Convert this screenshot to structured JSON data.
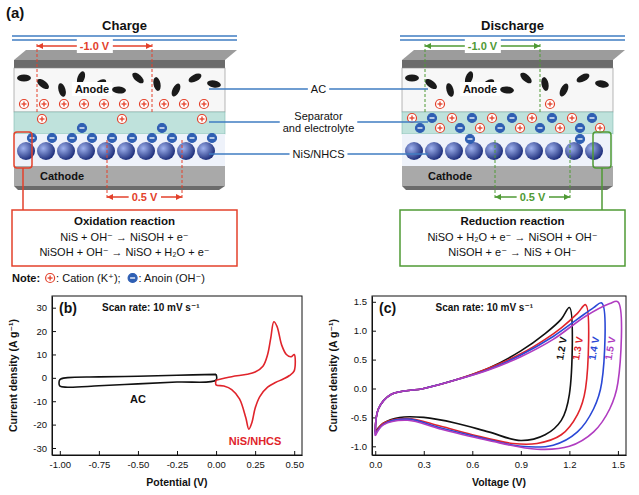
{
  "diagram": {
    "label": "(a)",
    "panels": [
      {
        "title": "Charge",
        "anode": "Anode",
        "cathode": "Cathode",
        "anode_voltage": "-1.0 V",
        "cathode_voltage": "0.5 V",
        "reaction": {
          "title": "Oxidation reaction",
          "equations": [
            "NiS + OH⁻ → NiSOH + e⁻",
            "NiSOH + OH⁻ → NiSO + H₂O + e⁻"
          ]
        }
      },
      {
        "title": "Discharge",
        "anode": "Anode",
        "cathode": "Cathode",
        "anode_voltage": "-1.0 V",
        "cathode_voltage": "0.5 V",
        "reaction": {
          "title": "Reduction reaction",
          "equations": [
            "NiSO + H₂O + e⁻ → NiSOH + OH⁻",
            "NiSOH + e⁻ → NiS + OH⁻"
          ]
        }
      }
    ],
    "callouts": [
      "AC",
      "Separator and electrolyte",
      "NiS/NHCS"
    ],
    "note": {
      "title": "Note:",
      "items": [
        ": Cation (K⁺);",
        ": Anoin (OH⁻)"
      ]
    }
  },
  "chart_data": [
    {
      "type": "line",
      "title": "(b)",
      "annotations": [
        "Scan rate: 10 mV s⁻¹"
      ],
      "x_label": "Potential (V)",
      "y_label": "Current density (A g⁻¹)",
      "xlim": [
        -1.05,
        0.55
      ],
      "xticks": [
        {
          "value": -1,
          "label": "-1.00"
        },
        -0.75,
        {
          "value": -0.5,
          "label": "-0.50"
        },
        -0.25,
        {
          "value": 0,
          "label": "0.00"
        },
        0.25,
        {
          "value": 0.5,
          "label": "0.50"
        }
      ],
      "ylim": [
        -33,
        35
      ],
      "yticks": [
        -30,
        -20,
        -10,
        0,
        10,
        20,
        30
      ],
      "series": [
        {
          "name": "AC",
          "color": "#111111",
          "x": [
            0,
            -0.25,
            -0.5,
            -0.75,
            -0.95,
            -1.0,
            -1.0,
            -0.95,
            -0.75,
            -0.5,
            -0.25,
            0,
            0
          ],
          "values": [
            1.5,
            1.1,
            0.7,
            0.4,
            0.1,
            -0.8,
            -3.5,
            -4.0,
            -3.4,
            -2.6,
            -1.8,
            -1.0,
            1.5
          ]
        },
        {
          "name": "NiS/NHCS",
          "color": "#e0242b",
          "x": [
            0,
            0.1,
            0.2,
            0.25,
            0.3,
            0.33,
            0.35,
            0.37,
            0.39,
            0.42,
            0.45,
            0.48,
            0.5,
            0.5,
            0.47,
            0.43,
            0.38,
            0.33,
            0.28,
            0.25,
            0.23,
            0.21,
            0.19,
            0.15,
            0.1,
            0.05,
            0,
            0
          ],
          "values": [
            -1,
            0.5,
            1.5,
            2.5,
            5,
            10,
            17,
            24,
            22,
            14,
            10,
            9,
            10,
            3,
            1,
            -0.5,
            -2,
            -4,
            -8,
            -13,
            -19,
            -22,
            -17,
            -9,
            -5,
            -3.5,
            -3,
            -1
          ]
        }
      ]
    },
    {
      "type": "line",
      "title": "(c)",
      "annotations": [
        "Scan rate: 10 mV s⁻¹"
      ],
      "x_label": "Voltage (V)",
      "y_label": "Current density (A g⁻¹)",
      "xlim": [
        -0.02,
        1.55
      ],
      "xticks": [
        {
          "value": 0,
          "label": "0.0"
        },
        0.3,
        0.6,
        0.9,
        1.2,
        1.5
      ],
      "ylim": [
        -1.15,
        1.6
      ],
      "yticks": [
        {
          "value": -1,
          "label": "-1.0"
        },
        -0.5,
        {
          "value": 0,
          "label": "0.0"
        },
        0.5,
        {
          "value": 1,
          "label": "1.0"
        },
        1.5
      ],
      "series": [
        {
          "name": "1.2 V",
          "color": "#111111",
          "x": [
            0,
            0.02,
            0.1,
            0.3,
            0.5,
            0.7,
            0.9,
            1.05,
            1.15,
            1.2,
            1.2,
            1.15,
            1.05,
            0.9,
            0.7,
            0.5,
            0.3,
            0.15,
            0.05,
            0
          ],
          "values": [
            -0.75,
            -0.35,
            -0.1,
            0.0,
            0.15,
            0.35,
            0.65,
            0.95,
            1.2,
            1.4,
            -0.1,
            -0.55,
            -0.8,
            -0.9,
            -0.75,
            -0.6,
            -0.5,
            -0.5,
            -0.6,
            -0.75
          ]
        },
        {
          "name": "1.3 V",
          "color": "#e0242b",
          "x": [
            0,
            0.02,
            0.1,
            0.3,
            0.5,
            0.7,
            0.9,
            1.05,
            1.15,
            1.25,
            1.3,
            1.3,
            1.25,
            1.15,
            1.0,
            0.85,
            0.6,
            0.4,
            0.2,
            0.05,
            0
          ],
          "values": [
            -0.78,
            -0.35,
            -0.1,
            0.0,
            0.15,
            0.35,
            0.6,
            0.85,
            1.05,
            1.3,
            1.45,
            0.0,
            -0.45,
            -0.8,
            -0.95,
            -0.95,
            -0.8,
            -0.65,
            -0.52,
            -0.6,
            -0.78
          ]
        },
        {
          "name": "1.4 V",
          "color": "#2a48d6",
          "x": [
            0,
            0.02,
            0.1,
            0.3,
            0.5,
            0.7,
            0.9,
            1.1,
            1.25,
            1.35,
            1.4,
            1.4,
            1.35,
            1.25,
            1.1,
            0.9,
            0.65,
            0.4,
            0.2,
            0.05,
            0
          ],
          "values": [
            -0.8,
            -0.35,
            -0.1,
            0.0,
            0.15,
            0.33,
            0.58,
            0.9,
            1.2,
            1.4,
            1.48,
            0.1,
            -0.35,
            -0.75,
            -0.98,
            -1.0,
            -0.85,
            -0.68,
            -0.53,
            -0.62,
            -0.8
          ]
        },
        {
          "name": "1.5 V",
          "color": "#b03cc0",
          "x": [
            0,
            0.02,
            0.1,
            0.3,
            0.5,
            0.7,
            0.9,
            1.1,
            1.3,
            1.45,
            1.5,
            1.5,
            1.45,
            1.35,
            1.2,
            1.0,
            0.7,
            0.4,
            0.2,
            0.05,
            0
          ],
          "values": [
            -0.82,
            -0.35,
            -0.1,
            0.0,
            0.15,
            0.32,
            0.55,
            0.85,
            1.25,
            1.47,
            1.5,
            0.1,
            -0.35,
            -0.75,
            -1.0,
            -1.05,
            -0.9,
            -0.7,
            -0.55,
            -0.63,
            -0.82
          ]
        }
      ]
    }
  ]
}
